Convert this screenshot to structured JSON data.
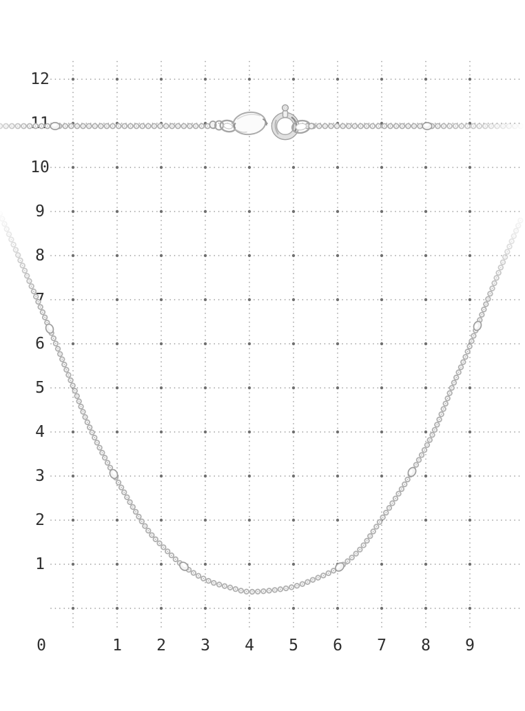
{
  "meta": {
    "description": "Product photo of a silver ball-chain necklace with small satellite beads and a spring-ring clasp, laid flat on a white background over a dotted centimeter measuring grid"
  },
  "background_color": "#ffffff",
  "grid": {
    "x_axis_labels": [
      "0",
      "1",
      "2",
      "3",
      "4",
      "5",
      "6",
      "7",
      "8",
      "9"
    ],
    "y_axis_labels": [
      "12",
      "11",
      "10",
      "9",
      "8",
      "7",
      "6",
      "5",
      "4",
      "3",
      "2",
      "1"
    ],
    "dot_color": "#9c9c9c",
    "node_color": "#6f6f6f",
    "label_color": "#2e2e2e"
  },
  "product": {
    "type": "bead chain necklace",
    "chain_style": "ball chain with satellite beads",
    "clasp": "spring-ring clasp with oval tag",
    "metal_tone": "#b2b2b2",
    "satellite_beads_visible": 8
  }
}
